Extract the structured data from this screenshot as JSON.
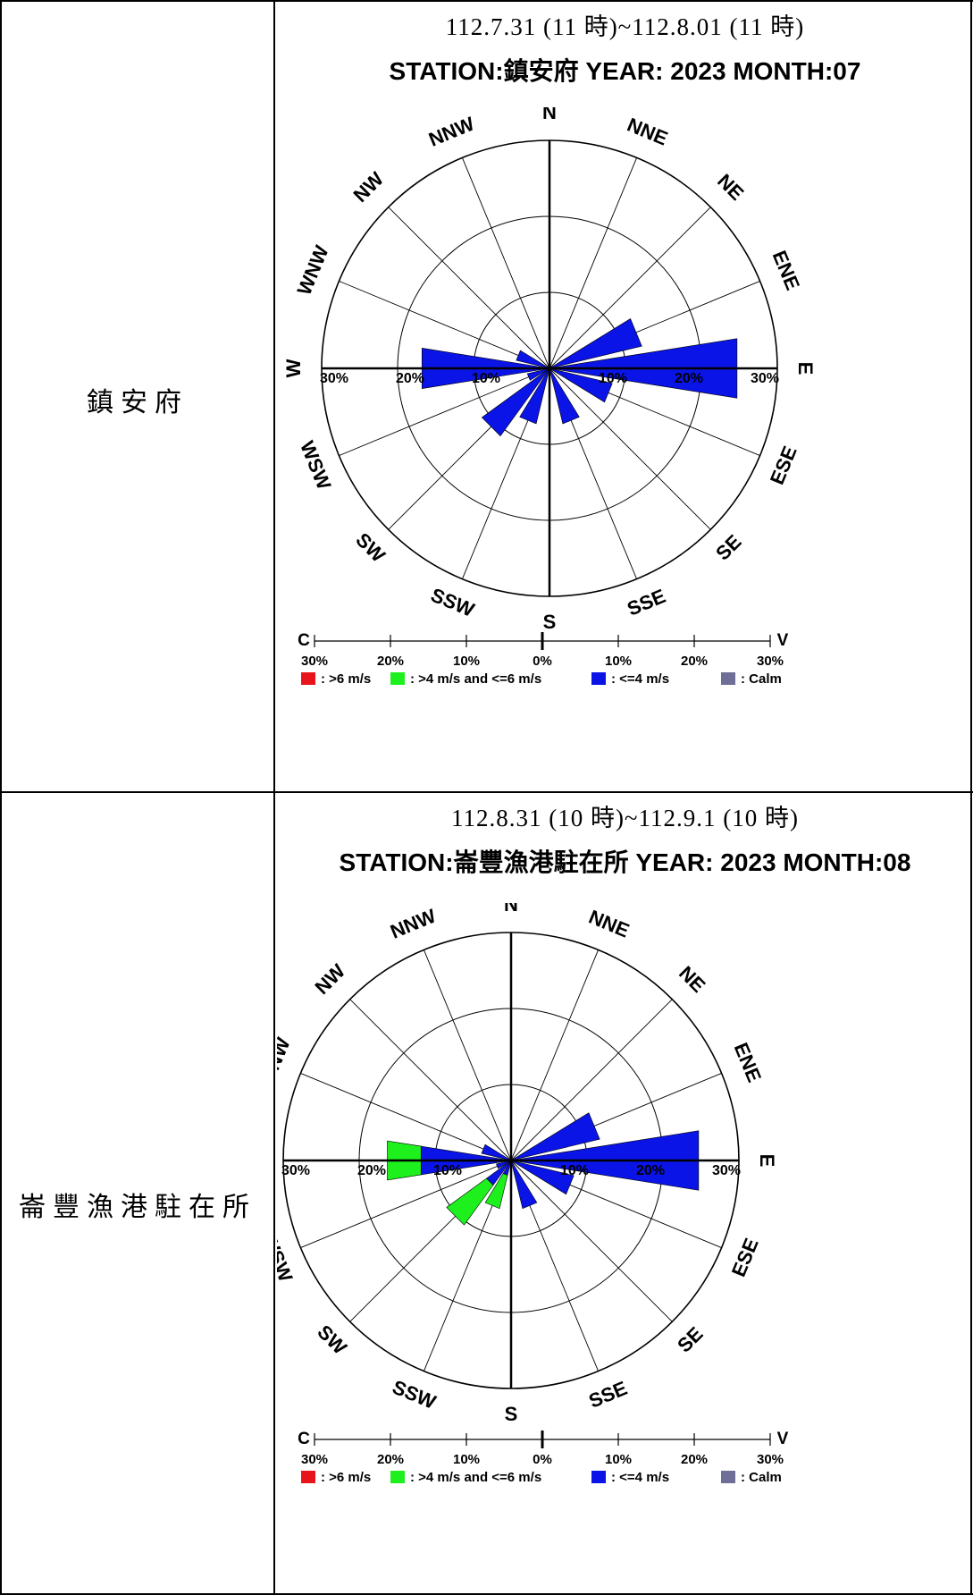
{
  "rows": [
    {
      "station": "鎮安府",
      "period": "112.7.31 (11 時)~112.8.01 (11 時)",
      "title": "STATION:鎮安府 YEAR: 2023   MONTH:07"
    },
    {
      "station": "崙豐漁港駐在所",
      "period": "112.8.31 (10 時)~112.9.1 (10 時)",
      "title": "STATION:崙豐漁港駐在所 YEAR: 2023   MONTH:08"
    }
  ],
  "directions": [
    "N",
    "NNE",
    "NE",
    "ENE",
    "E",
    "ESE",
    "SE",
    "SSE",
    "S",
    "SSW",
    "SW",
    "WSW",
    "W",
    "WNW",
    "NW",
    "NNW"
  ],
  "ring_labels": [
    "10%",
    "20%",
    "30%"
  ],
  "scale_bar": {
    "left_label": "C",
    "right_label": "V",
    "ticks": [
      "30%",
      "20%",
      "10%",
      "0%",
      "10%",
      "20%",
      "30%"
    ]
  },
  "legend": [
    {
      "label": ": >6 m/s",
      "color": "#e8141b"
    },
    {
      "label": ": >4 m/s and <=6 m/s",
      "color": "#1ef01e"
    },
    {
      "label": ": <=4 m/s",
      "color": "#0a14e6"
    },
    {
      "label": ": Calm",
      "color": "#6e6e96"
    }
  ],
  "chart_data": [
    {
      "type": "windrose",
      "title": "STATION:鎮安府 YEAR: 2023   MONTH:07",
      "subtitle": "112.7.31 (11 時)~112.8.01 (11 時)",
      "directions": [
        "N",
        "NNE",
        "NE",
        "ENE",
        "E",
        "ESE",
        "SE",
        "SSE",
        "S",
        "SSW",
        "SW",
        "WSW",
        "W",
        "WNW",
        "NW",
        "NNW"
      ],
      "rlim": [
        0,
        30
      ],
      "series": [
        {
          "name": ">6 m/s",
          "color": "#e8141b",
          "values": [
            0,
            0,
            0,
            0,
            0,
            0,
            0,
            0,
            0,
            0,
            0,
            0,
            0,
            0,
            0,
            0
          ]
        },
        {
          "name": ">4 m/s and <=6 m/s",
          "color": "#1ef01e",
          "values": [
            0,
            0,
            0,
            0,
            0,
            0,
            0,
            0,
            0,
            0,
            0,
            0,
            0,
            0,
            0,
            0
          ]
        },
        {
          "name": "<=4 m/s",
          "color": "#0a14e6",
          "values": [
            0,
            0,
            0,
            12.5,
            25,
            8.5,
            0,
            7.5,
            0,
            7.5,
            11,
            3,
            17,
            4.5,
            0,
            0
          ]
        },
        {
          "name": "Calm",
          "color": "#6e6e96",
          "values": [
            0
          ]
        }
      ]
    },
    {
      "type": "windrose",
      "title": "STATION:崙豐漁港駐在所 YEAR: 2023   MONTH:08",
      "subtitle": "112.8.31 (10 時)~112.9.1 (10 時)",
      "directions": [
        "N",
        "NNE",
        "NE",
        "ENE",
        "E",
        "ESE",
        "SE",
        "SSE",
        "S",
        "SSW",
        "SW",
        "WSW",
        "W",
        "WNW",
        "NW",
        "NNW"
      ],
      "rlim": [
        0,
        30
      ],
      "series": [
        {
          "name": ">6 m/s",
          "color": "#e8141b",
          "values": [
            0,
            0,
            0,
            0,
            0,
            0,
            0,
            0,
            0,
            0,
            0,
            0,
            0,
            0,
            0,
            0
          ]
        },
        {
          "name": ">4 m/s and <=6 m/s",
          "color": "#1ef01e",
          "values": [
            0,
            0,
            0,
            0,
            0,
            0,
            0,
            0,
            0,
            4.5,
            6.5,
            0,
            4.5,
            0,
            0,
            0
          ]
        },
        {
          "name": "<=4 m/s",
          "color": "#0a14e6",
          "values": [
            0,
            0,
            0,
            12,
            25,
            8.5,
            0,
            6.5,
            0,
            2,
            4,
            2,
            12,
            4,
            0,
            0
          ]
        },
        {
          "name": "Calm",
          "color": "#6e6e96",
          "values": [
            0
          ]
        }
      ]
    }
  ]
}
